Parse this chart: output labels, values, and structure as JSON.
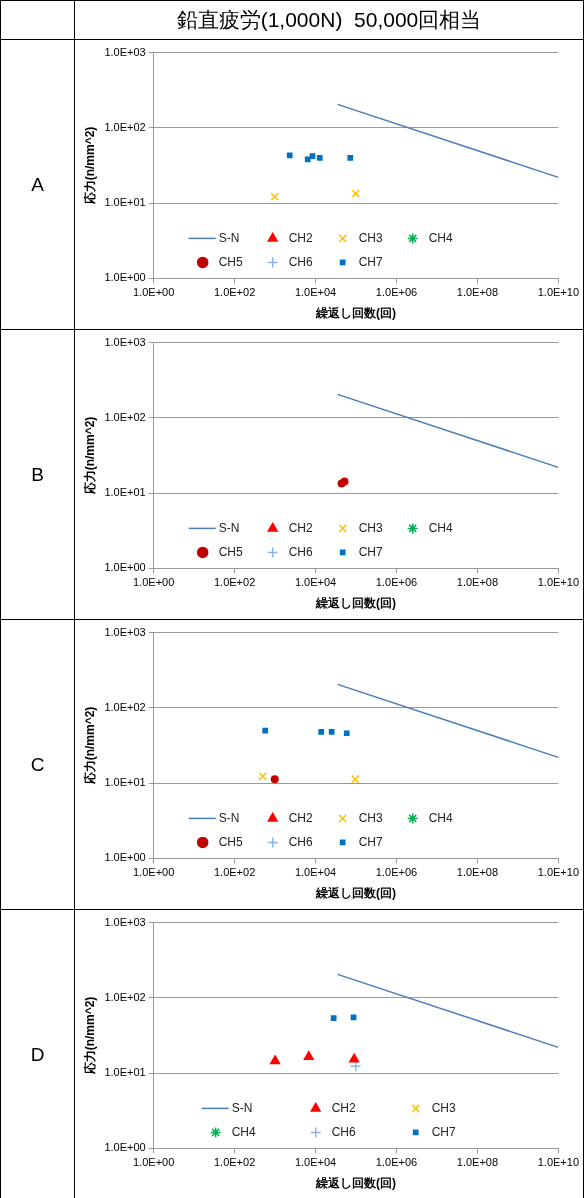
{
  "chart_data": [
    {
      "type": "other",
      "title": "鉛直疲労(1,000N)  50,000回相当"
    },
    {
      "type": "scatter",
      "title": "A",
      "xlabel": "繰返し回数(回)",
      "ylabel": "応力(n/mm^2)",
      "log": "xy",
      "grid": "y",
      "legend": "bottom",
      "xlim": [
        1,
        10000000000
      ],
      "ylim": [
        1,
        1000
      ],
      "xticks": [
        {
          "value": 1,
          "label": "1.0E+00"
        },
        {
          "value": 100,
          "label": "1.0E+02"
        },
        {
          "value": 10000,
          "label": "1.0E+04"
        },
        {
          "value": 1000000,
          "label": "1.0E+06"
        },
        {
          "value": 100000000,
          "label": "1.0E+08"
        },
        {
          "value": 10000000000,
          "label": "1.0E+10"
        }
      ],
      "yticks": [
        {
          "value": 1,
          "label": "1.0E+00"
        },
        {
          "value": 10,
          "label": "1.0E+01"
        },
        {
          "value": 100,
          "label": "1.0E+02"
        },
        {
          "value": 1000,
          "label": "1.0E+03"
        }
      ],
      "series": [
        {
          "name": "S-N",
          "type": "line",
          "marker": "none",
          "line_style": "solid",
          "color": "#4a7ebb",
          "x": [
            35000,
            10000000000
          ],
          "values": [
            205,
            22
          ]
        },
        {
          "name": "CH2",
          "type": "scatter",
          "marker": "triangle",
          "color": "#ff0000"
        },
        {
          "name": "CH3",
          "type": "scatter",
          "marker": "cross",
          "color": "#ffc000",
          "x": [
            980,
            98000
          ],
          "values": [
            12.2,
            13.4
          ]
        },
        {
          "name": "CH4",
          "type": "scatter",
          "marker": "star",
          "color": "#00b050"
        },
        {
          "name": "CH5",
          "type": "scatter",
          "marker": "circle",
          "color": "#c00000"
        },
        {
          "name": "CH6",
          "type": "scatter",
          "marker": "plus",
          "color": "#8eb4e3"
        },
        {
          "name": "CH7",
          "type": "scatter",
          "marker": "square",
          "color": "#0070c0",
          "x": [
            2300,
            6400,
            8400,
            12700,
            72000
          ],
          "values": [
            43,
            38,
            42,
            40,
            40
          ]
        }
      ]
    },
    {
      "type": "scatter",
      "title": "B",
      "xlabel": "繰返し回数(回)",
      "ylabel": "応力(n/mm^2)",
      "log": "xy",
      "grid": "y",
      "legend": "bottom",
      "xlim": [
        1,
        10000000000
      ],
      "ylim": [
        1,
        1000
      ],
      "xticks": [
        {
          "value": 1,
          "label": "1.0E+00"
        },
        {
          "value": 100,
          "label": "1.0E+02"
        },
        {
          "value": 10000,
          "label": "1.0E+04"
        },
        {
          "value": 1000000,
          "label": "1.0E+06"
        },
        {
          "value": 100000000,
          "label": "1.0E+08"
        },
        {
          "value": 10000000000,
          "label": "1.0E+10"
        }
      ],
      "yticks": [
        {
          "value": 1,
          "label": "1.0E+00"
        },
        {
          "value": 10,
          "label": "1.0E+01"
        },
        {
          "value": 100,
          "label": "1.0E+02"
        },
        {
          "value": 1000,
          "label": "1.0E+03"
        }
      ],
      "series": [
        {
          "name": "S-N",
          "type": "line",
          "marker": "none",
          "line_style": "solid",
          "color": "#4a7ebb",
          "x": [
            35000,
            10000000000
          ],
          "values": [
            205,
            22
          ]
        },
        {
          "name": "CH2",
          "type": "scatter",
          "marker": "triangle",
          "color": "#ff0000"
        },
        {
          "name": "CH3",
          "type": "scatter",
          "marker": "cross",
          "color": "#ffc000"
        },
        {
          "name": "CH4",
          "type": "scatter",
          "marker": "star",
          "color": "#00b050"
        },
        {
          "name": "CH5",
          "type": "scatter",
          "marker": "circle",
          "color": "#c00000",
          "x": [
            44000,
            52000
          ],
          "values": [
            13.4,
            14.3
          ]
        },
        {
          "name": "CH6",
          "type": "scatter",
          "marker": "plus",
          "color": "#8eb4e3"
        },
        {
          "name": "CH7",
          "type": "scatter",
          "marker": "square",
          "color": "#0070c0"
        }
      ]
    },
    {
      "type": "scatter",
      "title": "C",
      "xlabel": "繰返し回数(回)",
      "ylabel": "応力(n/mm^2)",
      "log": "xy",
      "grid": "y",
      "legend": "bottom",
      "xlim": [
        1,
        10000000000
      ],
      "ylim": [
        1,
        1000
      ],
      "xticks": [
        {
          "value": 1,
          "label": "1.0E+00"
        },
        {
          "value": 100,
          "label": "1.0E+02"
        },
        {
          "value": 10000,
          "label": "1.0E+04"
        },
        {
          "value": 1000000,
          "label": "1.0E+06"
        },
        {
          "value": 100000000,
          "label": "1.0E+08"
        },
        {
          "value": 10000000000,
          "label": "1.0E+10"
        }
      ],
      "yticks": [
        {
          "value": 1,
          "label": "1.0E+00"
        },
        {
          "value": 10,
          "label": "1.0E+01"
        },
        {
          "value": 100,
          "label": "1.0E+02"
        },
        {
          "value": 1000,
          "label": "1.0E+03"
        }
      ],
      "series": [
        {
          "name": "S-N",
          "type": "line",
          "marker": "none",
          "line_style": "solid",
          "color": "#4a7ebb",
          "x": [
            35000,
            10000000000
          ],
          "values": [
            205,
            22
          ]
        },
        {
          "name": "CH2",
          "type": "scatter",
          "marker": "triangle",
          "color": "#ff0000"
        },
        {
          "name": "CH3",
          "type": "scatter",
          "marker": "cross",
          "color": "#ffc000",
          "x": [
            495,
            96000
          ],
          "values": [
            12.3,
            11.3
          ]
        },
        {
          "name": "CH4",
          "type": "scatter",
          "marker": "star",
          "color": "#00b050"
        },
        {
          "name": "CH5",
          "type": "scatter",
          "marker": "circle",
          "color": "#c00000",
          "x": [
            980
          ],
          "values": [
            11.3
          ]
        },
        {
          "name": "CH6",
          "type": "scatter",
          "marker": "plus",
          "color": "#8eb4e3"
        },
        {
          "name": "CH7",
          "type": "scatter",
          "marker": "square",
          "color": "#0070c0",
          "x": [
            570,
            13800,
            25000,
            59000
          ],
          "values": [
            50,
            48,
            48,
            46
          ]
        }
      ]
    },
    {
      "type": "scatter",
      "title": "D",
      "xlabel": "繰返し回数(回)",
      "ylabel": "応力(n/mm^2)",
      "log": "xy",
      "grid": "y",
      "legend": "bottom",
      "xlim": [
        1,
        10000000000
      ],
      "ylim": [
        1,
        1000
      ],
      "xticks": [
        {
          "value": 1,
          "label": "1.0E+00"
        },
        {
          "value": 100,
          "label": "1.0E+02"
        },
        {
          "value": 10000,
          "label": "1.0E+04"
        },
        {
          "value": 1000000,
          "label": "1.0E+06"
        },
        {
          "value": 100000000,
          "label": "1.0E+08"
        },
        {
          "value": 10000000000,
          "label": "1.0E+10"
        }
      ],
      "yticks": [
        {
          "value": 1,
          "label": "1.0E+00"
        },
        {
          "value": 10,
          "label": "1.0E+01"
        },
        {
          "value": 100,
          "label": "1.0E+02"
        },
        {
          "value": 1000,
          "label": "1.0E+03"
        }
      ],
      "series": [
        {
          "name": "S-N",
          "type": "line",
          "marker": "none",
          "line_style": "solid",
          "color": "#4a7ebb",
          "x": [
            35000,
            10000000000
          ],
          "values": [
            205,
            22
          ]
        },
        {
          "name": "CH2",
          "type": "scatter",
          "marker": "triangle",
          "color": "#ff0000",
          "x": [
            1000,
            6800,
            90000
          ],
          "values": [
            14.5,
            16.5,
            15.3
          ]
        },
        {
          "name": "CH3",
          "type": "scatter",
          "marker": "cross",
          "color": "#ffc000"
        },
        {
          "name": "CH4",
          "type": "scatter",
          "marker": "star",
          "color": "#00b050"
        },
        {
          "name": "CH6",
          "type": "scatter",
          "marker": "plus",
          "color": "#8eb4e3",
          "x": [
            98000
          ],
          "values": [
            12.3
          ]
        },
        {
          "name": "CH7",
          "type": "scatter",
          "marker": "square",
          "color": "#0070c0",
          "x": [
            28000,
            87000
          ],
          "values": [
            54,
            55
          ]
        }
      ]
    }
  ]
}
